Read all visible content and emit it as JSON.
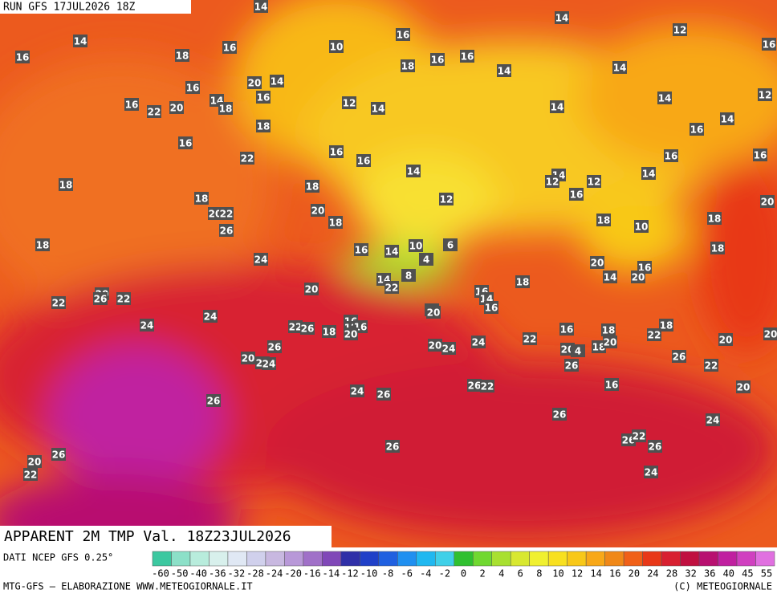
{
  "header": {
    "run": "RUN GFS 17JUL2026 18Z",
    "title": "APPARENT 2M TMP Val. 18Z23JUL2026"
  },
  "footer": {
    "source": "DATI NCEP GFS 0.25°",
    "credit": "MTG-GFS — ELABORAZIONE WWW.METEOGIORNALE.IT",
    "copyright": "(C) METEOGIORNALE"
  },
  "legend": {
    "ticks": [
      -60,
      -50,
      -40,
      -36,
      -32,
      -28,
      -24,
      -20,
      -16,
      -14,
      -12,
      -10,
      -8,
      -6,
      -4,
      -2,
      0,
      2,
      4,
      6,
      8,
      10,
      12,
      14,
      16,
      20,
      24,
      28,
      32,
      36,
      40,
      45,
      55
    ],
    "colors": [
      "#3cc8a0",
      "#8ce0c8",
      "#b8ecdc",
      "#d8f0ec",
      "#e0e8f4",
      "#d0d0ec",
      "#c8b8e0",
      "#b898d8",
      "#a070c8",
      "#8048b8",
      "#3030a8",
      "#2040c8",
      "#2060e0",
      "#2090f0",
      "#20b8f0",
      "#40d0e8",
      "#30c030",
      "#70d830",
      "#a8e030",
      "#d8e830",
      "#f0f030",
      "#f8e020",
      "#f8c818",
      "#f8a818",
      "#f08818",
      "#f06018",
      "#e83818",
      "#d82030",
      "#c01040",
      "#b81070",
      "#c020a0",
      "#d040c0",
      "#e070e0"
    ]
  },
  "labels": [
    14,
    14,
    16,
    18,
    16,
    10,
    16,
    18,
    16,
    16,
    14,
    14,
    14,
    12,
    16,
    12,
    16,
    20,
    14,
    16,
    22,
    20,
    14,
    18,
    16,
    12,
    14,
    14,
    14,
    14,
    16,
    18,
    16,
    22,
    16,
    16,
    14,
    16,
    16,
    14,
    14,
    12,
    12,
    16,
    18,
    18,
    18,
    12,
    20,
    22,
    20,
    18,
    18,
    10,
    18,
    20,
    26,
    18,
    24,
    16,
    14,
    10,
    6,
    18,
    20,
    4,
    16,
    8,
    14,
    22,
    14,
    20,
    18,
    20,
    20,
    26,
    22,
    22,
    16,
    14,
    16,
    12,
    20,
    24,
    24,
    22,
    26,
    18,
    16,
    12,
    16,
    20,
    16,
    18,
    18,
    22,
    20,
    22,
    24,
    20,
    24,
    20,
    4,
    18,
    20,
    26,
    20,
    26,
    20,
    22,
    24,
    26,
    22,
    16,
    20,
    24,
    26,
    22,
    26,
    26,
    26,
    24,
    26,
    22,
    26,
    26,
    26,
    20,
    22,
    24
  ]
}
